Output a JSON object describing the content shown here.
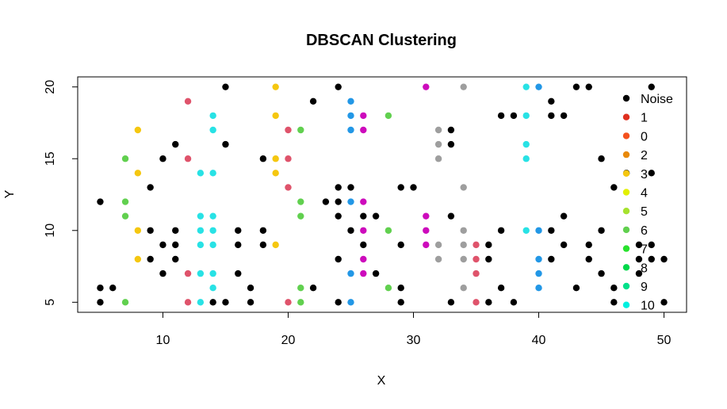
{
  "chart_data": {
    "type": "scatter",
    "title": "DBSCAN Clustering",
    "xlabel": "X",
    "ylabel": "Y",
    "xlim": [
      3.2,
      51.8
    ],
    "ylim": [
      4.3,
      20.7
    ],
    "xticks": [
      10,
      20,
      30,
      40,
      50
    ],
    "yticks": [
      5,
      10,
      15,
      20
    ],
    "legend_position": "top-right",
    "legend": [
      {
        "label": "Noise",
        "color": "#000000"
      },
      {
        "label": "1",
        "color": "#DF2F1F"
      },
      {
        "label": "0",
        "color": "#F4511E"
      },
      {
        "label": "2",
        "color": "#E8890C"
      },
      {
        "label": "3",
        "color": "#F5C710"
      },
      {
        "label": "4",
        "color": "#E2F000"
      },
      {
        "label": "5",
        "color": "#A6E22E"
      },
      {
        "label": "6",
        "color": "#61D04F"
      },
      {
        "label": "7",
        "color": "#28E22E"
      },
      {
        "label": "8",
        "color": "#00D84A"
      },
      {
        "label": "9",
        "color": "#00E08A"
      },
      {
        "label": "10",
        "color": "#00F0E0"
      }
    ],
    "series": [
      {
        "color": "#000000",
        "points": [
          [
            5,
            12
          ],
          [
            5,
            6
          ],
          [
            6,
            6
          ],
          [
            5,
            5
          ],
          [
            9,
            13
          ],
          [
            10,
            15
          ],
          [
            11,
            16
          ],
          [
            9,
            10
          ],
          [
            9,
            8
          ],
          [
            10,
            9
          ],
          [
            10,
            7
          ],
          [
            11,
            10
          ],
          [
            11,
            9
          ],
          [
            11,
            8
          ],
          [
            14,
            5
          ],
          [
            15,
            20
          ],
          [
            15,
            16
          ],
          [
            15,
            5
          ],
          [
            16,
            10
          ],
          [
            16,
            9
          ],
          [
            16,
            7
          ],
          [
            17,
            6
          ],
          [
            17,
            5
          ],
          [
            18,
            15
          ],
          [
            18,
            10
          ],
          [
            18,
            9
          ],
          [
            22,
            19
          ],
          [
            22,
            6
          ],
          [
            23,
            12
          ],
          [
            24,
            20
          ],
          [
            24,
            13
          ],
          [
            24,
            12
          ],
          [
            24,
            11
          ],
          [
            24,
            8
          ],
          [
            24,
            5
          ],
          [
            25,
            13
          ],
          [
            25,
            10
          ],
          [
            26,
            11
          ],
          [
            26,
            9
          ],
          [
            27,
            11
          ],
          [
            27,
            7
          ],
          [
            29,
            13
          ],
          [
            29,
            9
          ],
          [
            29,
            6
          ],
          [
            29,
            5
          ],
          [
            30,
            13
          ],
          [
            33,
            17
          ],
          [
            33,
            16
          ],
          [
            33,
            11
          ],
          [
            33,
            5
          ],
          [
            36,
            9
          ],
          [
            36,
            8
          ],
          [
            36,
            5
          ],
          [
            37,
            18
          ],
          [
            37,
            10
          ],
          [
            37,
            6
          ],
          [
            38,
            18
          ],
          [
            38,
            5
          ],
          [
            41,
            19
          ],
          [
            41,
            18
          ],
          [
            41,
            10
          ],
          [
            41,
            8
          ],
          [
            42,
            18
          ],
          [
            42,
            11
          ],
          [
            42,
            9
          ],
          [
            43,
            20
          ],
          [
            43,
            6
          ],
          [
            44,
            20
          ],
          [
            44,
            9
          ],
          [
            44,
            8
          ],
          [
            45,
            15
          ],
          [
            45,
            10
          ],
          [
            45,
            7
          ],
          [
            46,
            13
          ],
          [
            46,
            6
          ],
          [
            46,
            5
          ],
          [
            47,
            14
          ],
          [
            48,
            9
          ],
          [
            48,
            8
          ],
          [
            48,
            7
          ],
          [
            49,
            20
          ],
          [
            49,
            14
          ],
          [
            49,
            9
          ],
          [
            49,
            8
          ],
          [
            50,
            8
          ],
          [
            50,
            5
          ]
        ]
      },
      {
        "color": "#DF536B",
        "points": [
          [
            12,
            19
          ],
          [
            12,
            15
          ],
          [
            12,
            7
          ],
          [
            12,
            5
          ],
          [
            20,
            17
          ],
          [
            20,
            15
          ],
          [
            20,
            13
          ],
          [
            20,
            5
          ],
          [
            35,
            9
          ],
          [
            35,
            8
          ],
          [
            35,
            7
          ],
          [
            35,
            5
          ]
        ]
      },
      {
        "color": "#61D04F",
        "points": [
          [
            7,
            15
          ],
          [
            7,
            12
          ],
          [
            7,
            11
          ],
          [
            7,
            5
          ],
          [
            21,
            17
          ],
          [
            21,
            12
          ],
          [
            21,
            11
          ],
          [
            21,
            6
          ],
          [
            21,
            5
          ],
          [
            28,
            18
          ],
          [
            28,
            10
          ],
          [
            28,
            6
          ]
        ]
      },
      {
        "color": "#2297E6",
        "points": [
          [
            25,
            19
          ],
          [
            25,
            18
          ],
          [
            25,
            17
          ],
          [
            25,
            12
          ],
          [
            25,
            7
          ],
          [
            25,
            5
          ],
          [
            40,
            20
          ],
          [
            40,
            10
          ],
          [
            40,
            8
          ],
          [
            40,
            7
          ],
          [
            40,
            6
          ]
        ]
      },
      {
        "color": "#28E2E5",
        "points": [
          [
            13,
            14
          ],
          [
            13,
            11
          ],
          [
            13,
            10
          ],
          [
            13,
            9
          ],
          [
            13,
            7
          ],
          [
            13,
            5
          ],
          [
            14,
            18
          ],
          [
            14,
            17
          ],
          [
            14,
            14
          ],
          [
            14,
            11
          ],
          [
            14,
            10
          ],
          [
            14,
            9
          ],
          [
            14,
            7
          ],
          [
            14,
            6
          ],
          [
            39,
            20
          ],
          [
            39,
            18
          ],
          [
            39,
            16
          ],
          [
            39,
            15
          ],
          [
            39,
            10
          ]
        ]
      },
      {
        "color": "#CD0BBC",
        "points": [
          [
            26,
            18
          ],
          [
            26,
            17
          ],
          [
            26,
            12
          ],
          [
            26,
            10
          ],
          [
            26,
            8
          ],
          [
            26,
            7
          ],
          [
            31,
            20
          ],
          [
            31,
            11
          ],
          [
            31,
            10
          ],
          [
            31,
            9
          ]
        ]
      },
      {
        "color": "#F5C710",
        "points": [
          [
            8,
            17
          ],
          [
            8,
            14
          ],
          [
            8,
            10
          ],
          [
            8,
            8
          ],
          [
            19,
            20
          ],
          [
            19,
            18
          ],
          [
            19,
            15
          ],
          [
            19,
            14
          ],
          [
            19,
            9
          ]
        ]
      },
      {
        "color": "#9E9E9E",
        "points": [
          [
            32,
            17
          ],
          [
            32,
            16
          ],
          [
            32,
            15
          ],
          [
            32,
            9
          ],
          [
            32,
            8
          ],
          [
            34,
            20
          ],
          [
            34,
            13
          ],
          [
            34,
            10
          ],
          [
            34,
            9
          ],
          [
            34,
            8
          ],
          [
            34,
            6
          ]
        ]
      }
    ]
  }
}
